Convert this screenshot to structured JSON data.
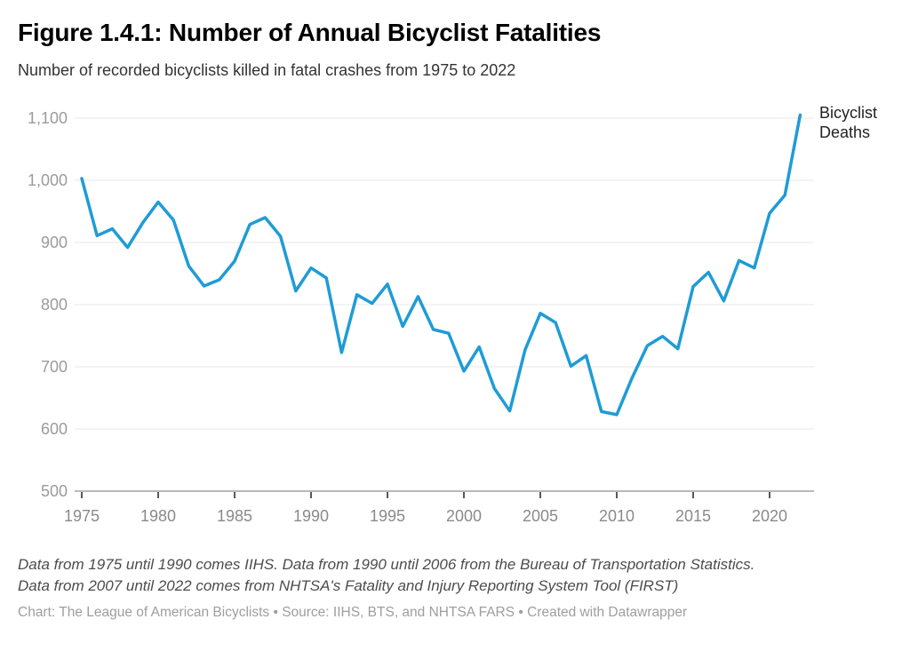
{
  "header": {
    "title": "Figure 1.4.1: Number of Annual Bicyclist Fatalities",
    "subtitle": "Number of recorded bicyclists killed in fatal crashes from 1975 to 2022"
  },
  "chart_data": {
    "type": "line",
    "title": "Figure 1.4.1: Number of Annual Bicyclist Fatalities",
    "subtitle": "Number of recorded bicyclists killed in fatal crashes from 1975 to 2022",
    "x": [
      1975,
      1976,
      1977,
      1978,
      1979,
      1980,
      1981,
      1982,
      1983,
      1984,
      1985,
      1986,
      1987,
      1988,
      1989,
      1990,
      1991,
      1992,
      1993,
      1994,
      1995,
      1996,
      1997,
      1998,
      1999,
      2000,
      2001,
      2002,
      2003,
      2004,
      2005,
      2006,
      2007,
      2008,
      2009,
      2010,
      2011,
      2012,
      2013,
      2014,
      2015,
      2016,
      2017,
      2018,
      2019,
      2020,
      2021,
      2022
    ],
    "series": [
      {
        "name": "Bicyclist Deaths",
        "values": [
          1003,
          911,
          922,
          892,
          932,
          965,
          936,
          862,
          830,
          840,
          870,
          929,
          940,
          910,
          822,
          859,
          843,
          723,
          816,
          802,
          833,
          765,
          813,
          760,
          754,
          693,
          732,
          665,
          629,
          727,
          786,
          771,
          701,
          718,
          628,
          623,
          682,
          734,
          749,
          729,
          829,
          852,
          806,
          871,
          859,
          947,
          976,
          1105
        ]
      }
    ],
    "ylim": [
      500,
      1100
    ],
    "yticks": [
      500,
      600,
      700,
      800,
      900,
      1000,
      1100
    ],
    "ytick_labels": [
      "500",
      "600",
      "700",
      "800",
      "900",
      "1,000",
      "1,100"
    ],
    "xticks": [
      1975,
      1980,
      1985,
      1990,
      1995,
      2000,
      2005,
      2010,
      2015,
      2020
    ],
    "grid": true,
    "legend_position": "right-of-line-end",
    "series_end_label": "Bicyclist Deaths"
  },
  "colors": {
    "line": "#1E9CD6",
    "gridline": "#e7e7e7",
    "baseline": "#a2a2a2",
    "axis_tick": "#2e2e2e",
    "y_tick_labels": "#9b9b9b",
    "x_tick_labels": "#8a8a8a"
  },
  "footer": {
    "notes": [
      "Data from 1975 until 1990 comes IIHS. Data from 1990 until 2006 from the Bureau of Transportation Statistics.",
      "Data from 2007 until 2022 comes from NHTSA's Fatality and Injury Reporting System Tool (FIRST)"
    ],
    "byline": "Chart: The League of American Bicyclists • Source: IIHS, BTS, and NHTSA FARS • Created with Datawrapper"
  }
}
